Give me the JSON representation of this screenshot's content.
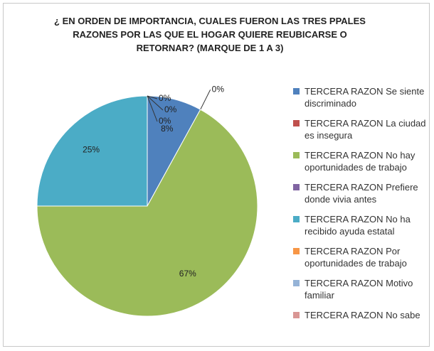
{
  "chart_data": {
    "type": "pie",
    "title": "¿ EN ORDEN DE IMPORTANCIA, CUALES FUERON LAS TRES PPALES RAZONES POR LAS QUE EL HOGAR QUIERE REUBICARSE O RETORNAR? (MARQUE DE 1 A 3)",
    "categories": [
      "TERCERA RAZON Se siente discriminado",
      "TERCERA RAZON La ciudad es insegura",
      "TERCERA RAZON No hay oportunidades de trabajo",
      "TERCERA RAZON Prefiere donde vivia antes",
      "TERCERA RAZON No ha recibido ayuda estatal",
      "TERCERA RAZON Por oportunidades de trabajo",
      "TERCERA RAZON Motivo familiar",
      "TERCERA RAZON No sabe"
    ],
    "values": [
      8,
      0,
      67,
      0,
      25,
      0,
      0,
      0
    ],
    "value_labels": [
      "8%",
      "0%",
      "67%",
      "0%",
      "25%",
      "0%",
      "0%",
      "0%"
    ],
    "colors": [
      "#4f81bd",
      "#c0504d",
      "#9bbb59",
      "#8064a2",
      "#4bacc6",
      "#f79646",
      "#95b3d7",
      "#d99694"
    ],
    "legend": "right"
  }
}
